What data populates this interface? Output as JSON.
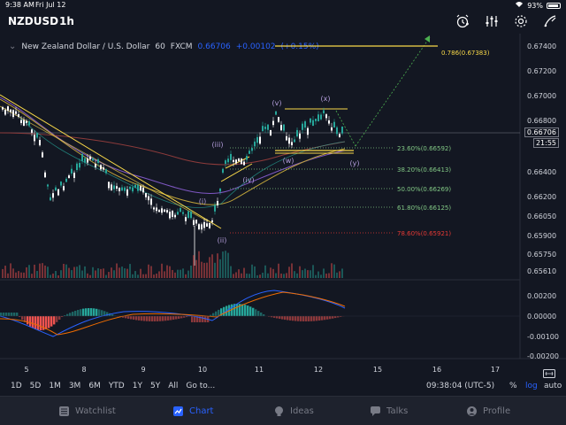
{
  "status": {
    "time": "9:38 AM",
    "date": "Fri Jul 12",
    "battery": "93%"
  },
  "header": {
    "symbol": "NZDUSD",
    "interval": "1h",
    "icons": [
      "alarm-clock-icon",
      "indicators-icon",
      "settings-icon",
      "drawing-tools-icon"
    ]
  },
  "legend": {
    "name": "New Zealand Dollar / U.S. Dollar",
    "interval": "60",
    "exchange": "FXCM",
    "last": "0.66706",
    "change": "+0.00102",
    "change_pct": "(+0.15%)"
  },
  "price_axis": {
    "labels": [
      "0.67400",
      "0.67200",
      "0.67000",
      "0.66800",
      "0.66400",
      "0.66200",
      "0.66050",
      "0.65900",
      "0.65750",
      "0.65610"
    ],
    "current_price": "0.66706",
    "countdown": "21:55",
    "osc_labels": [
      "0.00200",
      "0.00000",
      "-0.00100",
      "-0.00200"
    ]
  },
  "time_axis": {
    "labels": [
      "5",
      "8",
      "9",
      "10",
      "11",
      "12",
      "15",
      "16",
      "17"
    ]
  },
  "fib_levels": [
    {
      "label": "0.786(0.67383)",
      "color": "#f9d949"
    },
    {
      "label": "23.60%(0.66592)",
      "color": "#81c784"
    },
    {
      "label": "38.20%(0.66413)",
      "color": "#81c784"
    },
    {
      "label": "50.00%(0.66269)",
      "color": "#81c784"
    },
    {
      "label": "61.80%(0.66125)",
      "color": "#81c784"
    },
    {
      "label": "78.60%(0.65921)",
      "color": "#e53935"
    }
  ],
  "wave_labels": [
    "(v)",
    "(x)",
    "(iii)",
    "(iv)",
    "(i)",
    "(ii)",
    "(w)",
    "(y)"
  ],
  "timebar": {
    "periods": [
      "1D",
      "5D",
      "1M",
      "3M",
      "6M",
      "YTD",
      "1Y",
      "5Y",
      "All",
      "Go to..."
    ],
    "clock": "09:38:04 (UTC-5)",
    "percent": "%",
    "log": "log",
    "auto": "auto"
  },
  "tabs": [
    {
      "label": "Watchlist",
      "icon": "watchlist-icon",
      "active": false
    },
    {
      "label": "Chart",
      "icon": "chart-icon",
      "active": true
    },
    {
      "label": "Ideas",
      "icon": "ideas-icon",
      "active": false
    },
    {
      "label": "Talks",
      "icon": "talks-icon",
      "active": false
    },
    {
      "label": "Profile",
      "icon": "profile-icon",
      "active": false
    }
  ],
  "colors": {
    "background": "#131722",
    "up": "#26a69a",
    "down": "#ef5350",
    "accent": "#2962ff",
    "fib_top": "#f9d949"
  }
}
